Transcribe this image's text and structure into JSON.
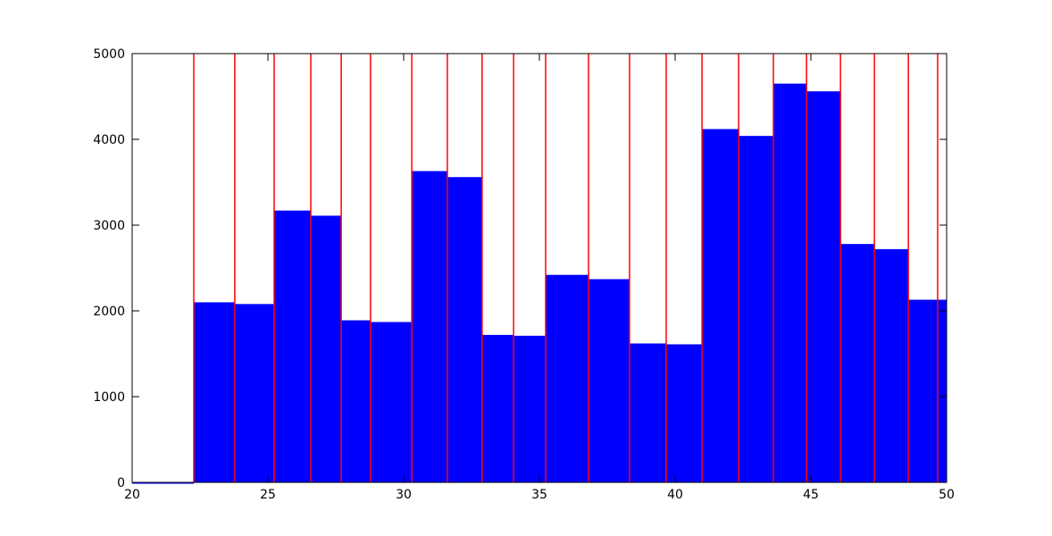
{
  "chart_data": {
    "type": "step-area",
    "xlim": [
      20,
      50
    ],
    "xticks": [
      20,
      25,
      30,
      35,
      40,
      45,
      50
    ],
    "ylim": [
      0,
      5000
    ],
    "yticks": [
      0,
      1000,
      2000,
      3000,
      4000,
      5000
    ],
    "series": [
      {
        "color": "#0000ff",
        "x": [
          20,
          22.27,
          23.78,
          25.23,
          26.58,
          27.7,
          28.78,
          30.3,
          31.61,
          32.89,
          34.05,
          35.23,
          36.81,
          38.32,
          39.67,
          40.99,
          42.34,
          43.62,
          44.84,
          46.09,
          47.34,
          48.59
        ],
        "values": [
          0,
          2100,
          2080,
          3170,
          3110,
          1890,
          1870,
          3630,
          3560,
          1720,
          1710,
          2420,
          2370,
          1620,
          1610,
          4120,
          4040,
          4650,
          4560,
          2780,
          2720,
          2130
        ]
      }
    ],
    "vlines": {
      "color": "#ff0000",
      "x": [
        22.27,
        23.78,
        25.23,
        26.58,
        27.7,
        28.78,
        30.3,
        31.61,
        32.89,
        34.05,
        35.23,
        36.81,
        38.32,
        39.67,
        40.99,
        42.34,
        43.62,
        44.84,
        46.09,
        47.34,
        48.59,
        49.67
      ]
    }
  }
}
